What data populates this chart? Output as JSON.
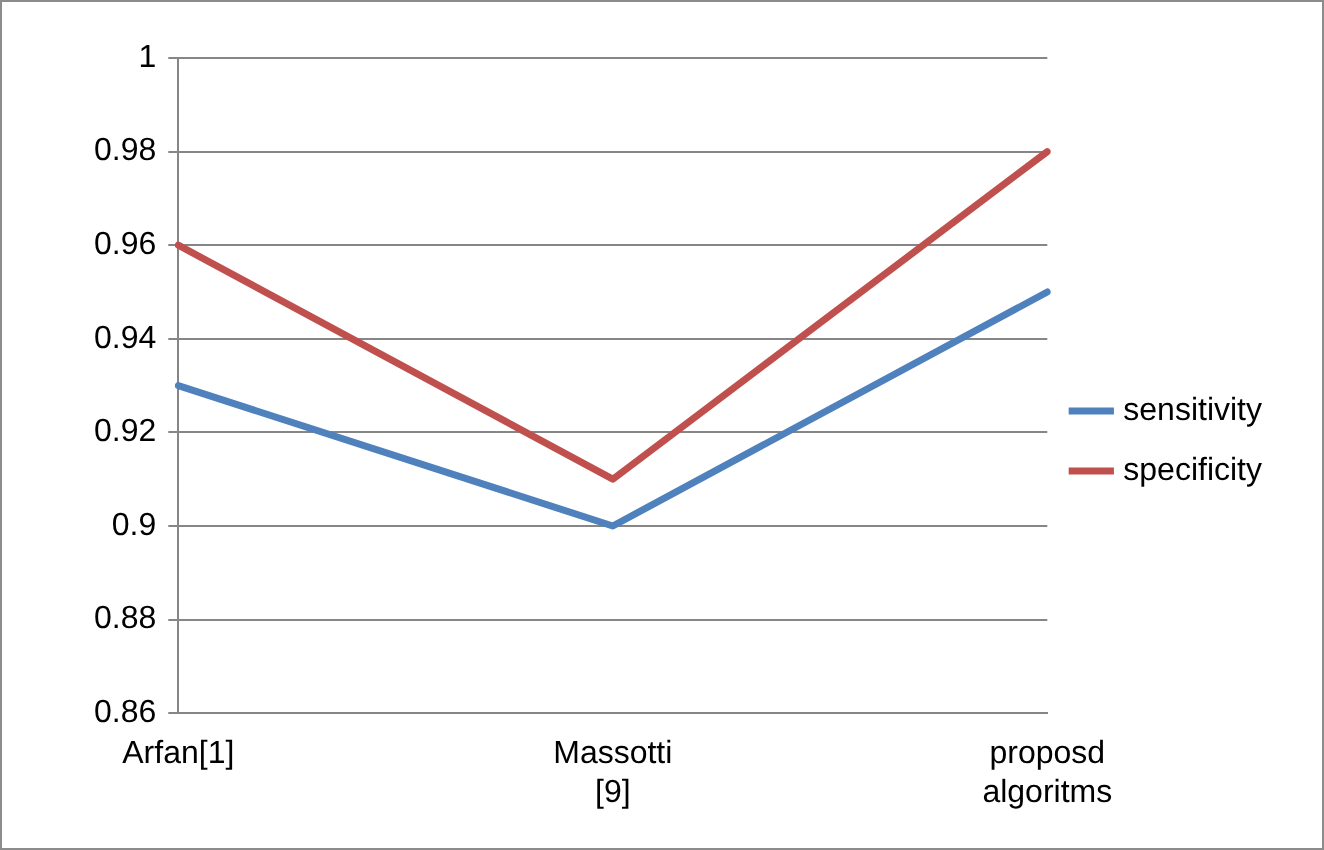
{
  "chart_data": {
    "type": "line",
    "categories": [
      "Arfan[1]",
      "Massotti [9]",
      "proposd algoritms"
    ],
    "series": [
      {
        "name": "sensitivity",
        "color": "#4f81bd",
        "values": [
          0.93,
          0.9,
          0.95
        ]
      },
      {
        "name": "specificity",
        "color": "#c0504d",
        "values": [
          0.96,
          0.91,
          0.98
        ]
      }
    ],
    "ylim": [
      0.86,
      1
    ],
    "yticks": [
      0.86,
      0.88,
      0.9,
      0.92,
      0.94,
      0.96,
      0.98,
      1
    ],
    "grid": "y",
    "legend": "right",
    "marker": "none",
    "line_style": "solid"
  }
}
